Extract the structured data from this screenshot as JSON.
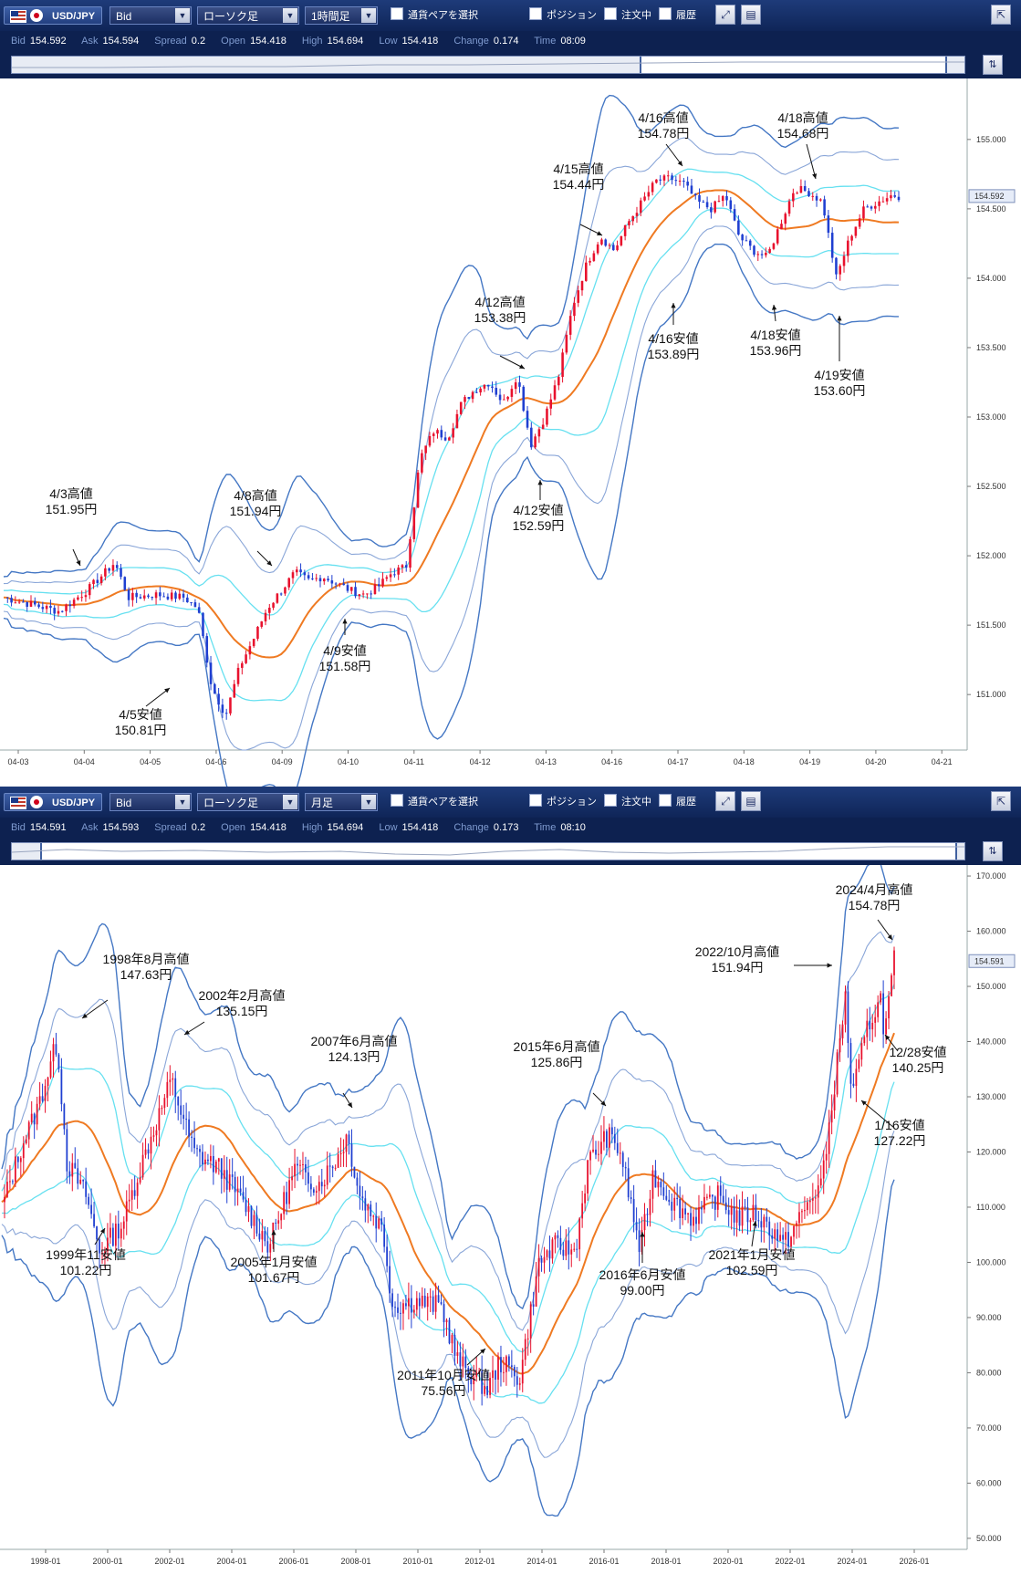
{
  "top": {
    "toolbar": {
      "pair": "USD/JPY",
      "price_type": "Bid",
      "chart_type": "ローソク足",
      "timeframe": "1時間足",
      "pair_select": "通貨ペアを選択",
      "position": "ポジション",
      "orders": "注文中",
      "history": "履歴"
    },
    "quote": {
      "bid_label": "Bid",
      "bid": "154.592",
      "ask_label": "Ask",
      "ask": "154.594",
      "spread_label": "Spread",
      "spread": "0.2",
      "open_label": "Open",
      "open": "154.418",
      "high_label": "High",
      "high": "154.694",
      "low_label": "Low",
      "low": "154.418",
      "change_label": "Change",
      "change": "0.174",
      "time_label": "Time",
      "time": "08:09"
    },
    "navigator": {
      "window_start": 0.66,
      "window_end": 0.98
    }
  },
  "bottom": {
    "toolbar": {
      "pair": "USD/JPY",
      "price_type": "Bid",
      "chart_type": "ローソク足",
      "timeframe": "月足",
      "pair_select": "通貨ペアを選択",
      "position": "ポジション",
      "orders": "注文中",
      "history": "履歴"
    },
    "quote": {
      "bid_label": "Bid",
      "bid": "154.591",
      "ask_label": "Ask",
      "ask": "154.593",
      "spread_label": "Spread",
      "spread": "0.2",
      "open_label": "Open",
      "open": "154.418",
      "high_label": "High",
      "high": "154.694",
      "low_label": "Low",
      "low": "154.418",
      "change_label": "Change",
      "change": "0.173",
      "time_label": "Time",
      "time": "08:10"
    },
    "navigator": {
      "window_start": 0.03,
      "window_end": 0.99
    }
  },
  "colors": {
    "toolbar": "#16306a",
    "up_candle": "#e8112d",
    "down_candle": "#1f3fd1",
    "ma": "#ef7a22",
    "band_inner": "#66e0f0",
    "band_mid": "#8aa6d8",
    "band_outer": "#4477c4"
  },
  "chart_data": [
    {
      "type": "candlestick",
      "title": "",
      "current_price": "154.592",
      "y_ticks": [
        "155.000",
        "154.500",
        "154.000",
        "153.500",
        "153.000",
        "152.500",
        "152.000",
        "151.500",
        "151.000"
      ],
      "ylim": [
        150.6,
        155.4
      ],
      "x_ticks": [
        "04-03",
        "04-04",
        "04-05",
        "04-06",
        "04-09",
        "04-10",
        "04-11",
        "04-12",
        "04-13",
        "04-16",
        "04-17",
        "04-18",
        "04-19",
        "04-20",
        "04-21"
      ],
      "close_path": [
        [
          0,
          151.7
        ],
        [
          4,
          151.65
        ],
        [
          8,
          151.6
        ],
        [
          12,
          151.75
        ],
        [
          16,
          151.95
        ],
        [
          18,
          151.7
        ],
        [
          22,
          151.72
        ],
        [
          26,
          151.7
        ],
        [
          28,
          151.62
        ],
        [
          30,
          151.05
        ],
        [
          32,
          150.85
        ],
        [
          34,
          151.2
        ],
        [
          36,
          151.4
        ],
        [
          38,
          151.62
        ],
        [
          40,
          151.75
        ],
        [
          42,
          151.88
        ],
        [
          44,
          151.82
        ],
        [
          46,
          151.85
        ],
        [
          48,
          151.8
        ],
        [
          50,
          151.75
        ],
        [
          52,
          151.72
        ],
        [
          54,
          151.78
        ],
        [
          56,
          151.88
        ],
        [
          58,
          151.92
        ],
        [
          60,
          152.7
        ],
        [
          62,
          152.9
        ],
        [
          64,
          152.85
        ],
        [
          66,
          153.1
        ],
        [
          68,
          153.2
        ],
        [
          70,
          153.25
        ],
        [
          72,
          153.1
        ],
        [
          74,
          153.3
        ],
        [
          76,
          152.8
        ],
        [
          78,
          153.0
        ],
        [
          80,
          153.3
        ],
        [
          82,
          153.8
        ],
        [
          84,
          154.1
        ],
        [
          86,
          154.3
        ],
        [
          88,
          154.2
        ],
        [
          90,
          154.4
        ],
        [
          92,
          154.55
        ],
        [
          94,
          154.7
        ],
        [
          96,
          154.72
        ],
        [
          98,
          154.68
        ],
        [
          100,
          154.55
        ],
        [
          102,
          154.5
        ],
        [
          104,
          154.6
        ],
        [
          106,
          154.3
        ],
        [
          108,
          154.2
        ],
        [
          110,
          154.15
        ],
        [
          112,
          154.4
        ],
        [
          114,
          154.65
        ],
        [
          116,
          154.62
        ],
        [
          118,
          154.55
        ],
        [
          120,
          154.0
        ],
        [
          122,
          154.3
        ],
        [
          124,
          154.5
        ],
        [
          126,
          154.55
        ],
        [
          128,
          154.6
        ],
        [
          129,
          154.592
        ]
      ],
      "annotations": [
        {
          "label": "4/3高値",
          "price": "151.95円"
        },
        {
          "label": "4/5安値",
          "price": "150.81円"
        },
        {
          "label": "4/8高値",
          "price": "151.94円"
        },
        {
          "label": "4/9安値",
          "price": "151.58円"
        },
        {
          "label": "4/12高値",
          "price": "153.38円"
        },
        {
          "label": "4/12安値",
          "price": "152.59円"
        },
        {
          "label": "4/15高値",
          "price": "154.44円"
        },
        {
          "label": "4/16高値",
          "price": "154.78円"
        },
        {
          "label": "4/16安値",
          "price": "153.89円"
        },
        {
          "label": "4/18高値",
          "price": "154.68円"
        },
        {
          "label": "4/18安値",
          "price": "153.96円"
        },
        {
          "label": "4/19安値",
          "price": "153.60円"
        }
      ],
      "indicators": [
        "moving average",
        "bollinger bands ±1σ",
        "bollinger bands ±2σ",
        "bollinger bands ±3σ"
      ]
    },
    {
      "type": "candlestick",
      "title": "",
      "current_price": "154.591",
      "y_ticks": [
        "170.000",
        "160.000",
        "150.000",
        "140.000",
        "130.000",
        "120.000",
        "110.000",
        "100.000",
        "90.000",
        "80.000",
        "70.000",
        "60.000",
        "50.000"
      ],
      "ylim": [
        48,
        171
      ],
      "x_ticks": [
        "1998-01",
        "2000-01",
        "2002-01",
        "2004-01",
        "2006-01",
        "2008-01",
        "2010-01",
        "2012-01",
        "2014-01",
        "2016-01",
        "2018-01",
        "2020-01",
        "2022-01",
        "2024-01",
        "2026-01"
      ],
      "close_path": [
        [
          1996.9,
          110
        ],
        [
          1997.5,
          121
        ],
        [
          1998.0,
          128
        ],
        [
          1998.6,
          140
        ],
        [
          1998.9,
          118
        ],
        [
          1999.5,
          112
        ],
        [
          1999.9,
          102
        ],
        [
          2000.6,
          107
        ],
        [
          2001.2,
          118
        ],
        [
          2002.1,
          133
        ],
        [
          2002.8,
          120
        ],
        [
          2003.6,
          117
        ],
        [
          2004.4,
          110
        ],
        [
          2005.1,
          103
        ],
        [
          2005.9,
          117
        ],
        [
          2006.6,
          114
        ],
        [
          2007.2,
          119
        ],
        [
          2007.5,
          123
        ],
        [
          2007.9,
          112
        ],
        [
          2008.6,
          106
        ],
        [
          2008.9,
          92
        ],
        [
          2009.6,
          93
        ],
        [
          2010.4,
          92
        ],
        [
          2010.9,
          82
        ],
        [
          2011.8,
          77
        ],
        [
          2012.2,
          82
        ],
        [
          2012.8,
          79
        ],
        [
          2013.4,
          100
        ],
        [
          2013.9,
          103
        ],
        [
          2014.5,
          102
        ],
        [
          2014.9,
          118
        ],
        [
          2015.5,
          123
        ],
        [
          2015.9,
          120
        ],
        [
          2016.5,
          102
        ],
        [
          2016.9,
          116
        ],
        [
          2017.5,
          111
        ],
        [
          2018.1,
          108
        ],
        [
          2018.9,
          112
        ],
        [
          2019.5,
          108
        ],
        [
          2020.0,
          109
        ],
        [
          2020.7,
          105
        ],
        [
          2020.9,
          103
        ],
        [
          2021.6,
          110
        ],
        [
          2022.1,
          115
        ],
        [
          2022.8,
          148
        ],
        [
          2023.0,
          130
        ],
        [
          2023.5,
          143
        ],
        [
          2023.9,
          148
        ],
        [
          2024.0,
          141
        ],
        [
          2024.3,
          154.6
        ]
      ],
      "annotations": [
        {
          "label": "1998年8月高値",
          "price": "147.63円"
        },
        {
          "label": "1999年11安値",
          "price": "101.22円"
        },
        {
          "label": "2002年2月高値",
          "price": "135.15円"
        },
        {
          "label": "2005年1月安値",
          "price": "101.67円"
        },
        {
          "label": "2007年6月高値",
          "price": "124.13円"
        },
        {
          "label": "2011年10月安値",
          "price": "75.56円"
        },
        {
          "label": "2015年6月高値",
          "price": "125.86円"
        },
        {
          "label": "2016年6月安値",
          "price": "99.00円"
        },
        {
          "label": "2021年1月安値",
          "price": "102.59円"
        },
        {
          "label": "2022/10月高値",
          "price": "151.94円"
        },
        {
          "label": "2024/4月高値",
          "price": "154.78円"
        },
        {
          "label": "12/28安値",
          "price": "140.25円"
        },
        {
          "label": "1/16安値",
          "price": "127.22円"
        }
      ],
      "indicators": [
        "moving average",
        "bollinger bands ±1σ",
        "bollinger bands ±2σ",
        "bollinger bands ±3σ"
      ]
    }
  ]
}
